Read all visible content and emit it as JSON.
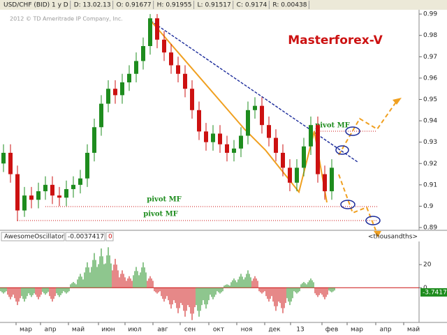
{
  "header": {
    "fields": [
      "USD/CHF (BID) 1 y D",
      "D: 13.02.13",
      "O: 0.91677",
      "H: 0.91955",
      "L: 0.91517",
      "C: 0.9174",
      "R: 0.00438"
    ],
    "copyright": "2012 © TD Ameritrade IP Company, Inc."
  },
  "chart_data": [
    {
      "type": "candlestick",
      "title": "Masterforex-V",
      "ylim": [
        0.8887,
        0.992
      ],
      "yticks": [
        0.89,
        0.9,
        0.91,
        0.92,
        0.93,
        0.94,
        0.95,
        0.96,
        0.97,
        0.98,
        0.99
      ],
      "up_color": "#1e8c1e",
      "down_color": "#cc1111",
      "annotations": [
        "pivot MF",
        "pivot MF",
        "pivot MF"
      ],
      "open": [
        0.92,
        0.925,
        0.915,
        0.898,
        0.905,
        0.903,
        0.907,
        0.91,
        0.905,
        0.904,
        0.908,
        0.91,
        0.913,
        0.925,
        0.937,
        0.948,
        0.955,
        0.952,
        0.958,
        0.962,
        0.968,
        0.975,
        0.988,
        0.978,
        0.972,
        0.966,
        0.962,
        0.955,
        0.945,
        0.935,
        0.93,
        0.934,
        0.929,
        0.925,
        0.927,
        0.933,
        0.945,
        0.947,
        0.938,
        0.932,
        0.925,
        0.918,
        0.911,
        0.918,
        0.928,
        0.938,
        0.915,
        0.907
      ],
      "high": [
        0.929,
        0.929,
        0.919,
        0.909,
        0.909,
        0.911,
        0.914,
        0.914,
        0.909,
        0.912,
        0.914,
        0.917,
        0.929,
        0.941,
        0.952,
        0.959,
        0.959,
        0.962,
        0.966,
        0.972,
        0.979,
        0.99,
        0.99,
        0.982,
        0.976,
        0.97,
        0.966,
        0.959,
        0.949,
        0.939,
        0.938,
        0.938,
        0.933,
        0.931,
        0.937,
        0.949,
        0.951,
        0.951,
        0.942,
        0.936,
        0.929,
        0.922,
        0.922,
        0.932,
        0.942,
        0.942,
        0.919,
        0.922
      ],
      "low": [
        0.916,
        0.911,
        0.893,
        0.895,
        0.899,
        0.899,
        0.903,
        0.901,
        0.9,
        0.9,
        0.904,
        0.906,
        0.909,
        0.921,
        0.933,
        0.944,
        0.948,
        0.948,
        0.954,
        0.958,
        0.964,
        0.971,
        0.974,
        0.968,
        0.962,
        0.958,
        0.951,
        0.941,
        0.931,
        0.926,
        0.926,
        0.925,
        0.921,
        0.921,
        0.923,
        0.929,
        0.941,
        0.934,
        0.928,
        0.921,
        0.914,
        0.907,
        0.907,
        0.914,
        0.924,
        0.911,
        0.903,
        0.903
      ],
      "close": [
        0.925,
        0.915,
        0.898,
        0.905,
        0.903,
        0.907,
        0.91,
        0.905,
        0.904,
        0.908,
        0.91,
        0.913,
        0.925,
        0.937,
        0.948,
        0.955,
        0.952,
        0.958,
        0.962,
        0.968,
        0.975,
        0.988,
        0.978,
        0.972,
        0.966,
        0.962,
        0.955,
        0.945,
        0.935,
        0.93,
        0.934,
        0.929,
        0.925,
        0.927,
        0.933,
        0.945,
        0.947,
        0.938,
        0.932,
        0.925,
        0.918,
        0.911,
        0.918,
        0.928,
        0.938,
        0.915,
        0.907,
        0.918
      ]
    },
    {
      "type": "histogram-oscillator",
      "name": "AwesomeOscillator",
      "header_value": "-0.0037417",
      "header_param": "0",
      "units": "<thousandths>",
      "ylim": [
        -30,
        40
      ],
      "yticks": [
        20,
        0
      ],
      "last_label": "-3.7417",
      "up_color": "#1e8c1e",
      "down_color": "#cc1111",
      "values": [
        -5,
        -10,
        -15,
        -12,
        -8,
        -10,
        -6,
        -12,
        -8,
        -5,
        5,
        12,
        22,
        30,
        34,
        35,
        25,
        15,
        10,
        18,
        22,
        10,
        -5,
        -12,
        -18,
        -22,
        -25,
        -28,
        -25,
        -18,
        -10,
        -5,
        3,
        8,
        12,
        15,
        10,
        -5,
        -12,
        -20,
        -22,
        -15,
        -5,
        5,
        8,
        -8,
        -10,
        -4
      ]
    }
  ],
  "x_labels": [
    "мар",
    "апр",
    "май",
    "июн",
    "июл",
    "авг",
    "сен",
    "окт",
    "ноя",
    "дек",
    "13",
    "фев",
    "мар",
    "апр",
    "май"
  ]
}
